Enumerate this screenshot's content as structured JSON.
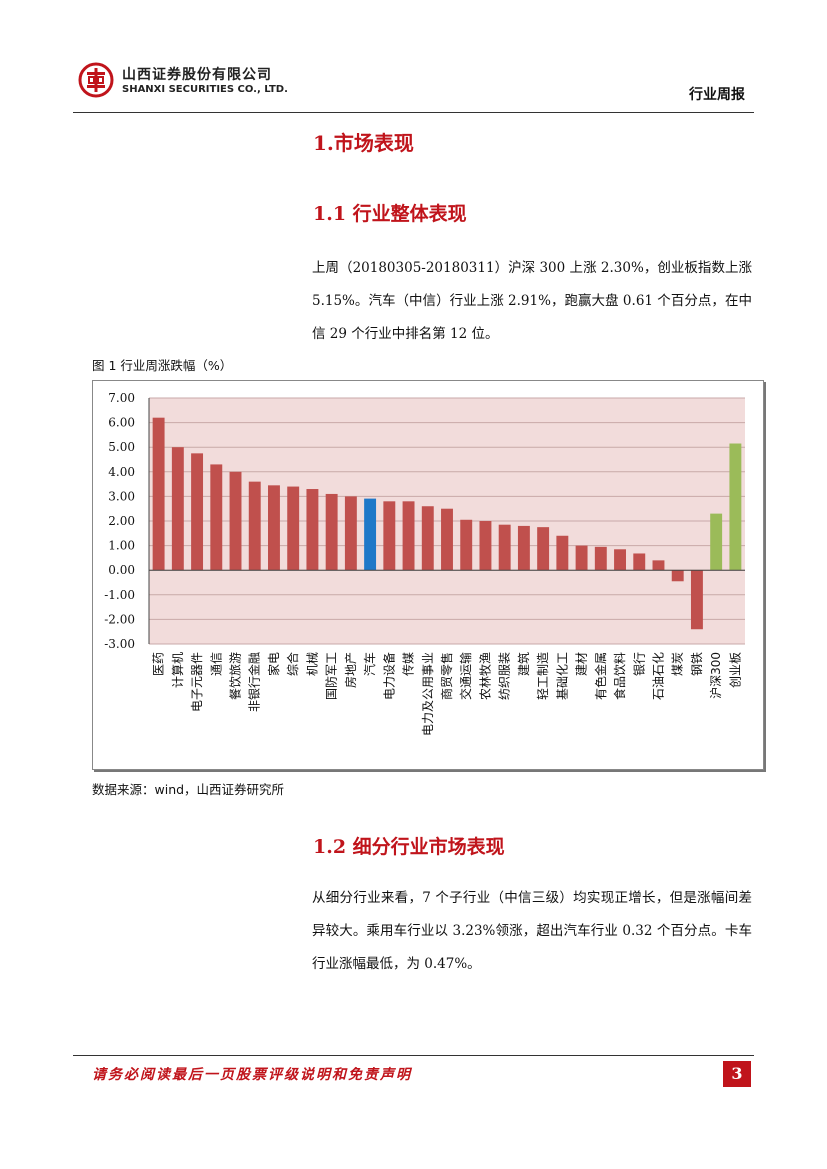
{
  "header": {
    "company_cn": "山西证券股份有限公司",
    "company_en": "SHANXI SECURITIES CO., LTD.",
    "report_type": "行业周报"
  },
  "section": {
    "h1": "1.市场表现",
    "h2_1": "1.1 行业整体表现",
    "para_1": "上周（20180305-20180311）沪深 300 上涨 2.30%，创业板指数上涨 5.15%。汽车（中信）行业上涨 2.91%，跑赢大盘 0.61 个百分点，在中信 29 个行业中排名第 12 位。",
    "figure_title": "图 1 行业周涨跌幅（%）",
    "source": "数据来源：wind，山西证券研究所",
    "h2_2": "1.2 细分行业市场表现",
    "para_2": "从细分行业来看，7 个子行业（中信三级）均实现正增长，但是涨幅间差异较大。乘用车行业以 3.23%领涨，超出汽车行业 0.32 个百分点。卡车行业涨幅最低，为 0.47%。"
  },
  "footer": {
    "disclaimer": "请务必阅读最后一页股票评级说明和免责声明",
    "page": "3"
  },
  "colors": {
    "accent_red": "#c0141b",
    "bar_default": "#c0504d",
    "bar_highlight": "#1f78c8",
    "bar_index": "#9bbb59",
    "plot_bg": "#f2dcdb"
  },
  "chart_data": {
    "type": "bar",
    "categories": [
      "医药",
      "计算机",
      "电子元器件",
      "通信",
      "餐饮旅游",
      "非银行金融",
      "家电",
      "综合",
      "机械",
      "国防军工",
      "房地产",
      "汽车",
      "电力设备",
      "传媒",
      "电力及公用事业",
      "商贸零售",
      "交通运输",
      "农林牧渔",
      "纺织服装",
      "建筑",
      "轻工制造",
      "基础化工",
      "建材",
      "有色金属",
      "食品饮料",
      "银行",
      "石油石化",
      "煤炭",
      "钢铁",
      "沪深300",
      "创业板"
    ],
    "values": [
      6.2,
      5.0,
      4.75,
      4.3,
      4.0,
      3.6,
      3.45,
      3.4,
      3.3,
      3.1,
      3.0,
      2.91,
      2.8,
      2.8,
      2.6,
      2.5,
      2.05,
      2.0,
      1.85,
      1.8,
      1.75,
      1.4,
      1.0,
      0.95,
      0.85,
      0.68,
      0.4,
      -0.45,
      -2.4,
      2.3,
      5.15
    ],
    "highlight": "汽车",
    "index_categories": [
      "沪深300",
      "创业板"
    ],
    "ylim": [
      -3,
      7
    ],
    "yticks": [
      "7.00",
      "6.00",
      "5.00",
      "4.00",
      "3.00",
      "2.00",
      "1.00",
      "0.00",
      "-1.00",
      "-2.00",
      "-3.00"
    ],
    "grid": true,
    "legend": "none"
  }
}
